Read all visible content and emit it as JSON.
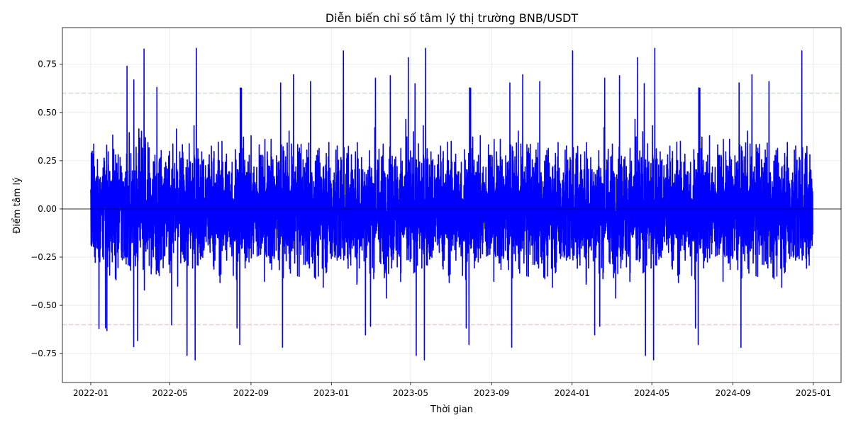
{
  "chart_data": {
    "type": "line",
    "title": "Diễn biến chỉ số tâm lý thị trường BNB/USDT",
    "xlabel": "Thời gian",
    "ylabel": "Điểm tâm lý",
    "x_range": [
      "2021-11-19",
      "2025-02-12"
    ],
    "ylim": [
      -0.9,
      0.94
    ],
    "x_ticks": [
      {
        "date": "2022-01-01",
        "label": "2022-01"
      },
      {
        "date": "2022-05-01",
        "label": "2022-05"
      },
      {
        "date": "2022-09-01",
        "label": "2022-09"
      },
      {
        "date": "2023-01-01",
        "label": "2023-01"
      },
      {
        "date": "2023-05-01",
        "label": "2023-05"
      },
      {
        "date": "2023-09-01",
        "label": "2023-09"
      },
      {
        "date": "2024-01-01",
        "label": "2024-01"
      },
      {
        "date": "2024-05-01",
        "label": "2024-05"
      },
      {
        "date": "2024-09-01",
        "label": "2024-09"
      },
      {
        "date": "2025-01-01",
        "label": "2025-01"
      }
    ],
    "y_ticks": [
      {
        "value": -0.75,
        "label": "−0.75"
      },
      {
        "value": -0.5,
        "label": "−0.50"
      },
      {
        "value": -0.25,
        "label": "−0.25"
      },
      {
        "value": 0.0,
        "label": "0.00"
      },
      {
        "value": 0.25,
        "label": "0.25"
      },
      {
        "value": 0.5,
        "label": "0.50"
      },
      {
        "value": 0.75,
        "label": "0.75"
      }
    ],
    "grid": true,
    "reference_lines": [
      {
        "value": 0.6,
        "color": "#2ca02c",
        "style": "dashed"
      },
      {
        "value": 0.0,
        "color": "#000000",
        "style": "solid"
      },
      {
        "value": -0.6,
        "color": "#d62728",
        "style": "dashed"
      }
    ],
    "series": [
      {
        "color": "#0000ff",
        "x_start": "2022-01-01",
        "x_end": "2024-12-31",
        "samples_per_day": 6,
        "typical_range": [
          -0.55,
          0.55
        ],
        "min": -0.89,
        "max": 0.85
      }
    ]
  }
}
